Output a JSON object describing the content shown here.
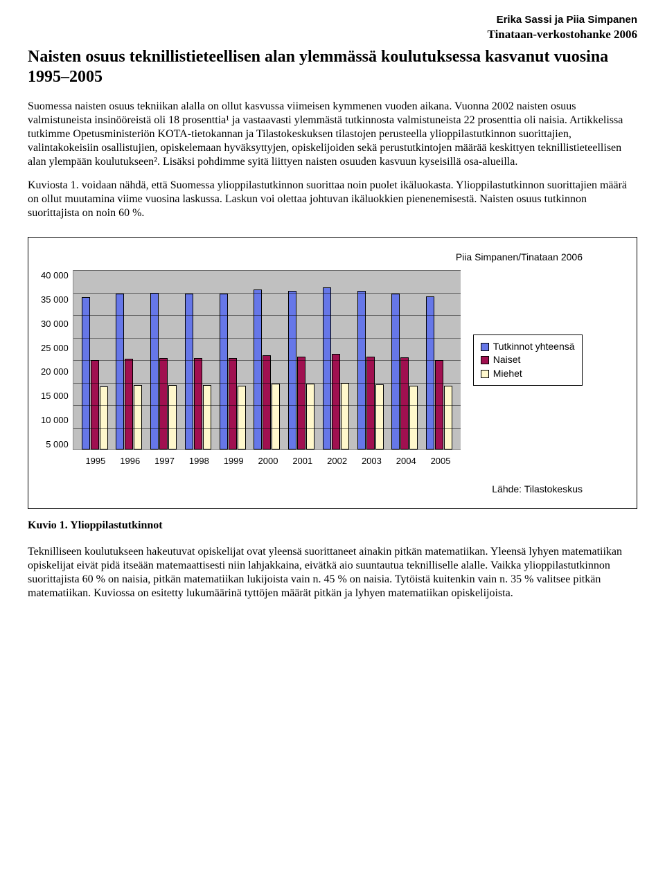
{
  "header": {
    "authors": "Erika Sassi ja Piia Simpanen",
    "project": "Tinataan-verkostohanke 2006"
  },
  "title": "Naisten osuus teknillistieteellisen alan ylemmässä koulutuksessa kasvanut vuosina 1995–2005",
  "paragraphs": {
    "p1": "Suomessa naisten osuus tekniikan alalla on ollut kasvussa viimeisen kymmenen vuoden aikana. Vuonna 2002 naisten osuus valmistuneista insinööreistä oli 18 prosenttia¹ ja vastaavasti ylemmästä tutkinnosta valmistuneista 22 prosenttia oli naisia. Artikkelissa tutkimme Opetusministeriön KOTA-tietokannan ja Tilastokeskuksen tilastojen perusteella ylioppilastutkinnon suorittajien, valintakokeisiin osallistujien, opiskelemaan hyväksyttyjen, opiskelijoiden sekä perustutkintojen määrää keskittyen teknillistieteellisen alan ylempään koulutukseen². Lisäksi pohdimme syitä liittyen naisten osuuden kasvuun kyseisillä osa-alueilla.",
    "p2": "Kuviosta 1. voidaan nähdä, että Suomessa ylioppilastutkinnon suorittaa noin puolet ikäluokasta. Ylioppilastutkinnon suorittajien määrä on ollut muutamina viime vuosina laskussa. Laskun voi olettaa johtuvan ikäluokkien pienenemisestä. Naisten osuus tutkinnon suorittajista on noin 60 %.",
    "p3": "Teknilliseen koulutukseen hakeutuvat opiskelijat ovat yleensä suorittaneet ainakin pitkän matematiikan. Yleensä lyhyen matematiikan opiskelijat eivät pidä itseään matemaattisesti niin lahjakkaina, eivätkä aio suuntautua teknilliselle alalle. Vaikka ylioppilastutkinnon suorittajista 60 % on naisia, pitkän matematiikan lukijoista vain n. 45 % on naisia. Tytöistä kuitenkin vain n. 35 % valitsee pitkän matematiikan. Kuviossa on esitetty lukumäärinä tyttöjen määrät pitkän ja lyhyen matematiikan opiskelijoista."
  },
  "chart": {
    "type": "bar",
    "credit": "Piia Simpanen/Tinataan 2006",
    "source": "Lähde: Tilastokeskus",
    "ylim_max": 40000,
    "ytick_step": 5000,
    "yticks": [
      "40 000",
      "35 000",
      "30 000",
      "25 000",
      "20 000",
      "15 000",
      "10 000",
      "5 000"
    ],
    "categories": [
      "1995",
      "1996",
      "1997",
      "1998",
      "1999",
      "2000",
      "2001",
      "2002",
      "2003",
      "2004",
      "2005"
    ],
    "series": [
      {
        "label": "Tutkinnot yhteensä",
        "color": "#6677e8",
        "values": [
          33800,
          34600,
          34800,
          34700,
          34600,
          35500,
          35300,
          36000,
          35200,
          34700,
          34000
        ]
      },
      {
        "label": "Naiset",
        "color": "#a01050",
        "values": [
          19800,
          20200,
          20400,
          20300,
          20400,
          20900,
          20600,
          21200,
          20700,
          20500,
          19900
        ]
      },
      {
        "label": "Miehet",
        "color": "#fff8cc",
        "values": [
          14000,
          14400,
          14400,
          14400,
          14200,
          14600,
          14700,
          14800,
          14500,
          14200,
          14100
        ]
      }
    ],
    "plot_bg": "#c0c0c0",
    "grid_color": "#000000",
    "bar_border": "#000000",
    "legend_bg": "#ffffff"
  },
  "figure_caption": "Kuvio 1. Ylioppilastutkinnot"
}
